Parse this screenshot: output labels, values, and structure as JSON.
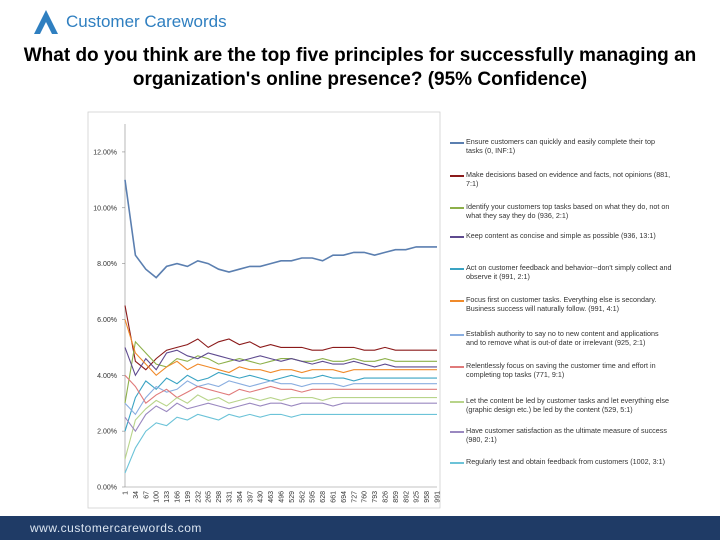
{
  "logo": "Customer Carewords",
  "footer": "www.customercarewords.com",
  "chart_data": {
    "type": "line",
    "title": "What do you think are the top five principles for successfully managing an organization's online presence?  (95% Confidence)",
    "categories": [
      "1",
      "34",
      "67",
      "100",
      "133",
      "166",
      "199",
      "232",
      "265",
      "298",
      "331",
      "364",
      "397",
      "430",
      "463",
      "496",
      "529",
      "562",
      "595",
      "628",
      "661",
      "694",
      "727",
      "760",
      "793",
      "826",
      "859",
      "892",
      "925",
      "958",
      "991"
    ],
    "ylim": [
      0,
      13
    ],
    "yticks": [
      {
        "value": 0,
        "label": "0.00%"
      },
      {
        "value": 2,
        "label": "2.00%"
      },
      {
        "value": 4,
        "label": "4.00%"
      },
      {
        "value": 6,
        "label": "6.00%"
      },
      {
        "value": 8,
        "label": "8.00%"
      },
      {
        "value": 10,
        "label": "10.00%"
      },
      {
        "value": 12,
        "label": "12.00%"
      }
    ],
    "series": [
      {
        "name": "Ensure customers can quickly and easily complete their top tasks (0, INF:1)",
        "color": "#5b7fb0",
        "values": [
          11.0,
          8.3,
          7.8,
          7.5,
          7.9,
          8.0,
          7.9,
          8.1,
          8.0,
          7.8,
          7.7,
          7.8,
          7.9,
          7.9,
          8.0,
          8.1,
          8.1,
          8.2,
          8.2,
          8.1,
          8.3,
          8.3,
          8.4,
          8.4,
          8.3,
          8.4,
          8.5,
          8.5,
          8.6,
          8.6,
          8.6
        ]
      },
      {
        "name": "Make decisions based on evidence and facts, not opinions (881, 7:1)",
        "color": "#8b1a1a",
        "values": [
          6.5,
          4.5,
          4.2,
          4.6,
          4.9,
          5.0,
          5.1,
          5.3,
          5.0,
          5.2,
          5.3,
          5.1,
          5.2,
          5.0,
          5.1,
          5.0,
          5.0,
          5.0,
          4.9,
          4.9,
          5.0,
          5.0,
          5.0,
          4.9,
          4.9,
          5.0,
          4.9,
          4.9,
          4.9,
          4.9,
          4.9
        ]
      },
      {
        "name": "Identify your customers top tasks based on what they do, not on what they say they do (936, 2:1)",
        "color": "#8db04a",
        "values": [
          3.0,
          5.2,
          4.8,
          4.4,
          4.3,
          4.6,
          4.5,
          4.7,
          4.6,
          4.4,
          4.5,
          4.6,
          4.5,
          4.4,
          4.5,
          4.6,
          4.6,
          4.5,
          4.5,
          4.6,
          4.5,
          4.5,
          4.6,
          4.5,
          4.5,
          4.6,
          4.5,
          4.5,
          4.5,
          4.5,
          4.5
        ]
      },
      {
        "name": "Keep content as concise and simple as possible (936, 13:1)",
        "color": "#5e4a8f",
        "values": [
          5.0,
          4.0,
          4.6,
          4.2,
          4.8,
          4.9,
          4.7,
          4.6,
          4.8,
          4.7,
          4.6,
          4.5,
          4.6,
          4.7,
          4.6,
          4.5,
          4.6,
          4.5,
          4.4,
          4.5,
          4.4,
          4.4,
          4.5,
          4.4,
          4.3,
          4.4,
          4.3,
          4.3,
          4.3,
          4.3,
          4.3
        ]
      },
      {
        "name": "Act on customer feedback and behavior--don't simply collect and observe it (991, 2:1)",
        "color": "#3aa3c3",
        "values": [
          2.0,
          3.2,
          3.8,
          3.5,
          3.9,
          3.7,
          4.0,
          3.8,
          3.9,
          4.1,
          4.0,
          3.9,
          4.0,
          3.9,
          3.8,
          3.9,
          4.0,
          3.9,
          3.9,
          4.0,
          3.9,
          3.9,
          3.8,
          3.9,
          3.9,
          3.9,
          3.9,
          3.9,
          3.9,
          3.9,
          3.9
        ]
      },
      {
        "name": "Focus first on customer tasks. Everything else is secondary. Business success will naturally follow. (991, 4:1)",
        "color": "#f08a2a",
        "values": [
          6.0,
          4.8,
          4.4,
          4.0,
          4.3,
          4.5,
          4.2,
          4.4,
          4.3,
          4.2,
          4.1,
          4.3,
          4.2,
          4.2,
          4.1,
          4.2,
          4.2,
          4.1,
          4.2,
          4.2,
          4.2,
          4.1,
          4.2,
          4.2,
          4.2,
          4.2,
          4.2,
          4.2,
          4.2,
          4.2,
          4.2
        ]
      },
      {
        "name": "Establish authority to say no to new content and applications and to remove what is out-of date or irrelevant (925, 2:1)",
        "color": "#8aaee0",
        "values": [
          3.0,
          2.6,
          3.2,
          3.6,
          3.4,
          3.5,
          3.8,
          3.6,
          3.7,
          3.6,
          3.8,
          3.7,
          3.6,
          3.7,
          3.8,
          3.7,
          3.7,
          3.6,
          3.7,
          3.7,
          3.7,
          3.6,
          3.7,
          3.7,
          3.7,
          3.7,
          3.7,
          3.7,
          3.7,
          3.7,
          3.7
        ]
      },
      {
        "name": "Relentlessly focus on saving the customer time and effort in completing top tasks (771, 9:1)",
        "color": "#e07a7a",
        "values": [
          4.0,
          3.6,
          3.0,
          3.3,
          3.5,
          3.2,
          3.4,
          3.6,
          3.5,
          3.4,
          3.3,
          3.5,
          3.4,
          3.5,
          3.6,
          3.5,
          3.5,
          3.4,
          3.5,
          3.5,
          3.5,
          3.5,
          3.5,
          3.5,
          3.5,
          3.5,
          3.5,
          3.5,
          3.5,
          3.5,
          3.5
        ]
      },
      {
        "name": "Let the content be led by customer tasks and let everything else (graphic design etc.) be led by the content (529, 5:1)",
        "color": "#b8d48a",
        "values": [
          1.0,
          2.4,
          2.8,
          3.1,
          2.9,
          3.2,
          3.0,
          3.3,
          3.1,
          3.2,
          3.0,
          3.1,
          3.2,
          3.1,
          3.2,
          3.1,
          3.2,
          3.2,
          3.2,
          3.1,
          3.2,
          3.2,
          3.2,
          3.2,
          3.2,
          3.2,
          3.2,
          3.2,
          3.2,
          3.2,
          3.2
        ]
      },
      {
        "name": "Have customer satisfaction as the ultimate measure of success (980, 2:1)",
        "color": "#9a88c0",
        "values": [
          2.5,
          2.0,
          2.6,
          2.9,
          2.7,
          3.0,
          2.8,
          2.9,
          3.0,
          2.9,
          2.8,
          2.9,
          3.0,
          2.9,
          3.0,
          3.0,
          2.9,
          3.0,
          3.0,
          3.0,
          2.9,
          3.0,
          3.0,
          3.0,
          3.0,
          3.0,
          3.0,
          3.0,
          3.0,
          3.0,
          3.0
        ]
      },
      {
        "name": "Regularly test and obtain feedback from customers (1002, 3:1)",
        "color": "#6cc3d8",
        "values": [
          0.5,
          1.4,
          2.0,
          2.3,
          2.2,
          2.5,
          2.4,
          2.6,
          2.5,
          2.4,
          2.6,
          2.5,
          2.6,
          2.5,
          2.6,
          2.6,
          2.5,
          2.6,
          2.6,
          2.6,
          2.6,
          2.6,
          2.6,
          2.6,
          2.6,
          2.6,
          2.6,
          2.6,
          2.6,
          2.6,
          2.6
        ]
      }
    ]
  }
}
